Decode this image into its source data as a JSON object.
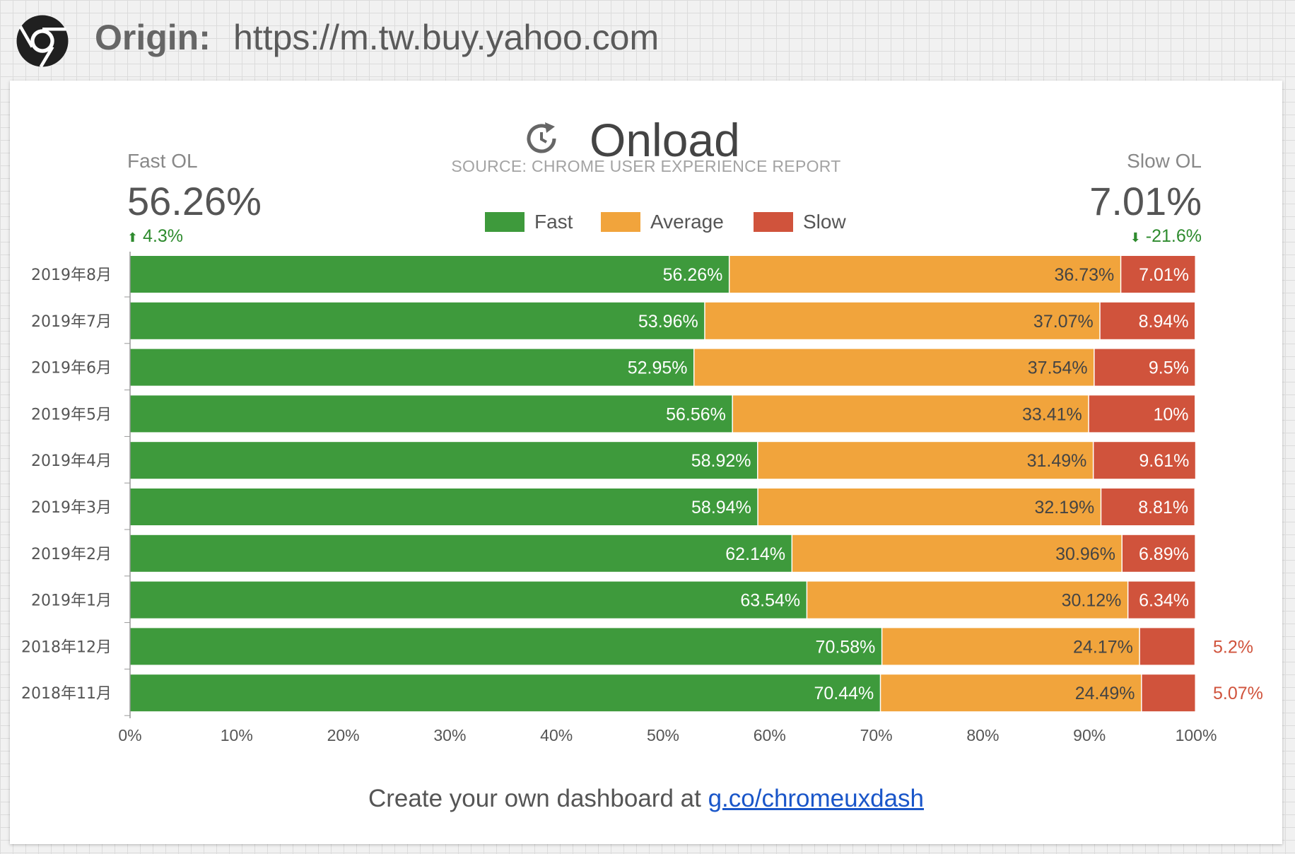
{
  "header": {
    "origin_label": "Origin:",
    "origin_url": "https://m.tw.buy.yahoo.com",
    "icon": "chrome-icon"
  },
  "panel": {
    "title": "Onload",
    "title_icon": "refresh-clock-icon",
    "source": "SOURCE: CHROME USER EXPERIENCE REPORT",
    "fast_kpi": {
      "label": "Fast OL",
      "value": "56.26%",
      "delta": "4.3%",
      "delta_direction": "up"
    },
    "slow_kpi": {
      "label": "Slow OL",
      "value": "7.01%",
      "delta": "-21.6%",
      "delta_direction": "down"
    },
    "legend": [
      {
        "label": "Fast",
        "color": "#3e9a3c"
      },
      {
        "label": "Average",
        "color": "#f1a43c"
      },
      {
        "label": "Slow",
        "color": "#d0533c"
      }
    ],
    "footer_text": "Create your own dashboard at ",
    "footer_link": "g.co/chromeuxdash"
  },
  "chart_data": {
    "type": "bar",
    "orientation": "horizontal",
    "stacked": true,
    "categories": [
      "2019年8月",
      "2019年7月",
      "2019年6月",
      "2019年5月",
      "2019年4月",
      "2019年3月",
      "2019年2月",
      "2019年1月",
      "2018年12月",
      "2018年11月"
    ],
    "series": [
      {
        "name": "Fast",
        "color": "#3e9a3c",
        "values": [
          56.26,
          53.96,
          52.95,
          56.56,
          58.92,
          58.94,
          62.14,
          63.54,
          70.58,
          70.44
        ],
        "labels": [
          "56.26%",
          "53.96%",
          "52.95%",
          "56.56%",
          "58.92%",
          "58.94%",
          "62.14%",
          "63.54%",
          "70.58%",
          "70.44%"
        ]
      },
      {
        "name": "Average",
        "color": "#f1a43c",
        "values": [
          36.73,
          37.07,
          37.54,
          33.41,
          31.49,
          32.19,
          30.96,
          30.12,
          24.17,
          24.49
        ],
        "labels": [
          "36.73%",
          "37.07%",
          "37.54%",
          "33.41%",
          "31.49%",
          "32.19%",
          "30.96%",
          "30.12%",
          "24.17%",
          "24.49%"
        ]
      },
      {
        "name": "Slow",
        "color": "#d0533c",
        "values": [
          7.01,
          8.94,
          9.5,
          10,
          9.61,
          8.81,
          6.89,
          6.34,
          5.2,
          5.07
        ],
        "labels": [
          "7.01%",
          "8.94%",
          "9.5%",
          "10%",
          "9.61%",
          "8.81%",
          "6.89%",
          "6.34%",
          "5.2%",
          "5.07%"
        ]
      }
    ],
    "xlim": [
      0,
      100
    ],
    "x_ticks": [
      "0%",
      "10%",
      "20%",
      "30%",
      "40%",
      "50%",
      "60%",
      "70%",
      "80%",
      "90%",
      "100%"
    ],
    "grid": false,
    "legend_position": "top"
  }
}
